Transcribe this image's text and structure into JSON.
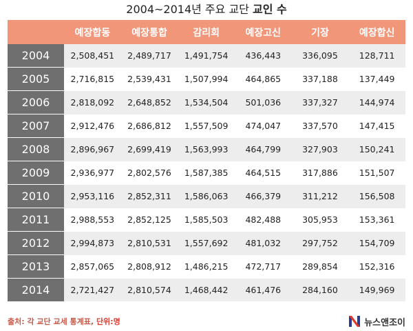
{
  "title": {
    "prefix": "2004~2014년 주요 교단 ",
    "bold": "교인 수"
  },
  "table": {
    "headers": [
      "예장합동",
      "예장통합",
      "감리회",
      "예장고신",
      "기장",
      "예장합신"
    ],
    "rows": [
      {
        "year": "2004",
        "values": [
          "2,508,451",
          "2,489,717",
          "1,491,754",
          "436,443",
          "336,095",
          "128,711"
        ]
      },
      {
        "year": "2005",
        "values": [
          "2,716,815",
          "2,539,431",
          "1,507,994",
          "464,865",
          "337,188",
          "137,449"
        ]
      },
      {
        "year": "2006",
        "values": [
          "2,818,092",
          "2,648,852",
          "1,534,504",
          "501,036",
          "337,327",
          "144,974"
        ]
      },
      {
        "year": "2007",
        "values": [
          "2,912,476",
          "2,686,812",
          "1,557,509",
          "474,047",
          "337,570",
          "147,415"
        ]
      },
      {
        "year": "2008",
        "values": [
          "2,896,967",
          "2,699,419",
          "1,563,993",
          "464,799",
          "327,903",
          "150,241"
        ]
      },
      {
        "year": "2009",
        "values": [
          "2,936,977",
          "2,802,576",
          "1,587,385",
          "464,515",
          "317,886",
          "151,507"
        ]
      },
      {
        "year": "2010",
        "values": [
          "2,953,116",
          "2,852,311",
          "1,586,063",
          "466,379",
          "311,212",
          "156,508"
        ]
      },
      {
        "year": "2011",
        "values": [
          "2,988,553",
          "2,852,125",
          "1,585,503",
          "482,488",
          "305,953",
          "153,361"
        ]
      },
      {
        "year": "2012",
        "values": [
          "2,994,873",
          "2,810,531",
          "1,557,692",
          "481,032",
          "297,752",
          "154,709"
        ]
      },
      {
        "year": "2013",
        "values": [
          "2,857,065",
          "2,808,912",
          "1,486,215",
          "472,717",
          "289,854",
          "152,316"
        ]
      },
      {
        "year": "2014",
        "values": [
          "2,721,427",
          "2,810,574",
          "1,468,442",
          "461,476",
          "284,160",
          "149,969"
        ]
      }
    ]
  },
  "footer": {
    "source": "출처: 각 교단 교세 통계표, ",
    "unit": "단위:명"
  },
  "logo": {
    "text": "뉴스앤조이",
    "icon": "newsnjoy-logo-icon"
  },
  "colors": {
    "header_bg": "#f2967a",
    "year_bg": "#6f6f6f",
    "stripe_bg": "#ededed",
    "accent_red": "#e03a2b"
  }
}
